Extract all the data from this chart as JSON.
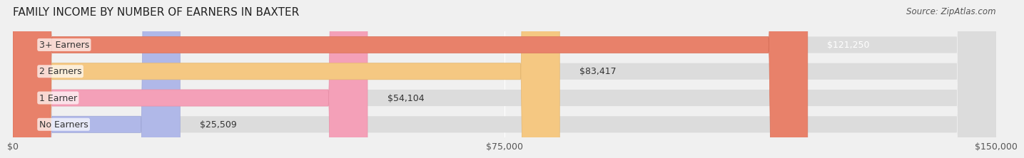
{
  "title": "FAMILY INCOME BY NUMBER OF EARNERS IN BAXTER",
  "source": "Source: ZipAtlas.com",
  "categories": [
    "No Earners",
    "1 Earner",
    "2 Earners",
    "3+ Earners"
  ],
  "values": [
    25509,
    54104,
    83417,
    121250
  ],
  "value_labels": [
    "$25,509",
    "$54,104",
    "$83,417",
    "$121,250"
  ],
  "bar_colors": [
    "#b0b8e8",
    "#f4a0b8",
    "#f5c882",
    "#e8816a"
  ],
  "bar_edge_colors": [
    "#a0a8d8",
    "#e890a8",
    "#e5b872",
    "#d8715a"
  ],
  "background_color": "#f0f0f0",
  "bar_bg_color": "#e8e8e8",
  "xlim": [
    0,
    150000
  ],
  "xticks": [
    0,
    75000,
    150000
  ],
  "xticklabels": [
    "$0",
    "$75,000",
    "$150,000"
  ],
  "title_fontsize": 11,
  "label_fontsize": 9,
  "value_fontsize": 9,
  "source_fontsize": 8.5
}
